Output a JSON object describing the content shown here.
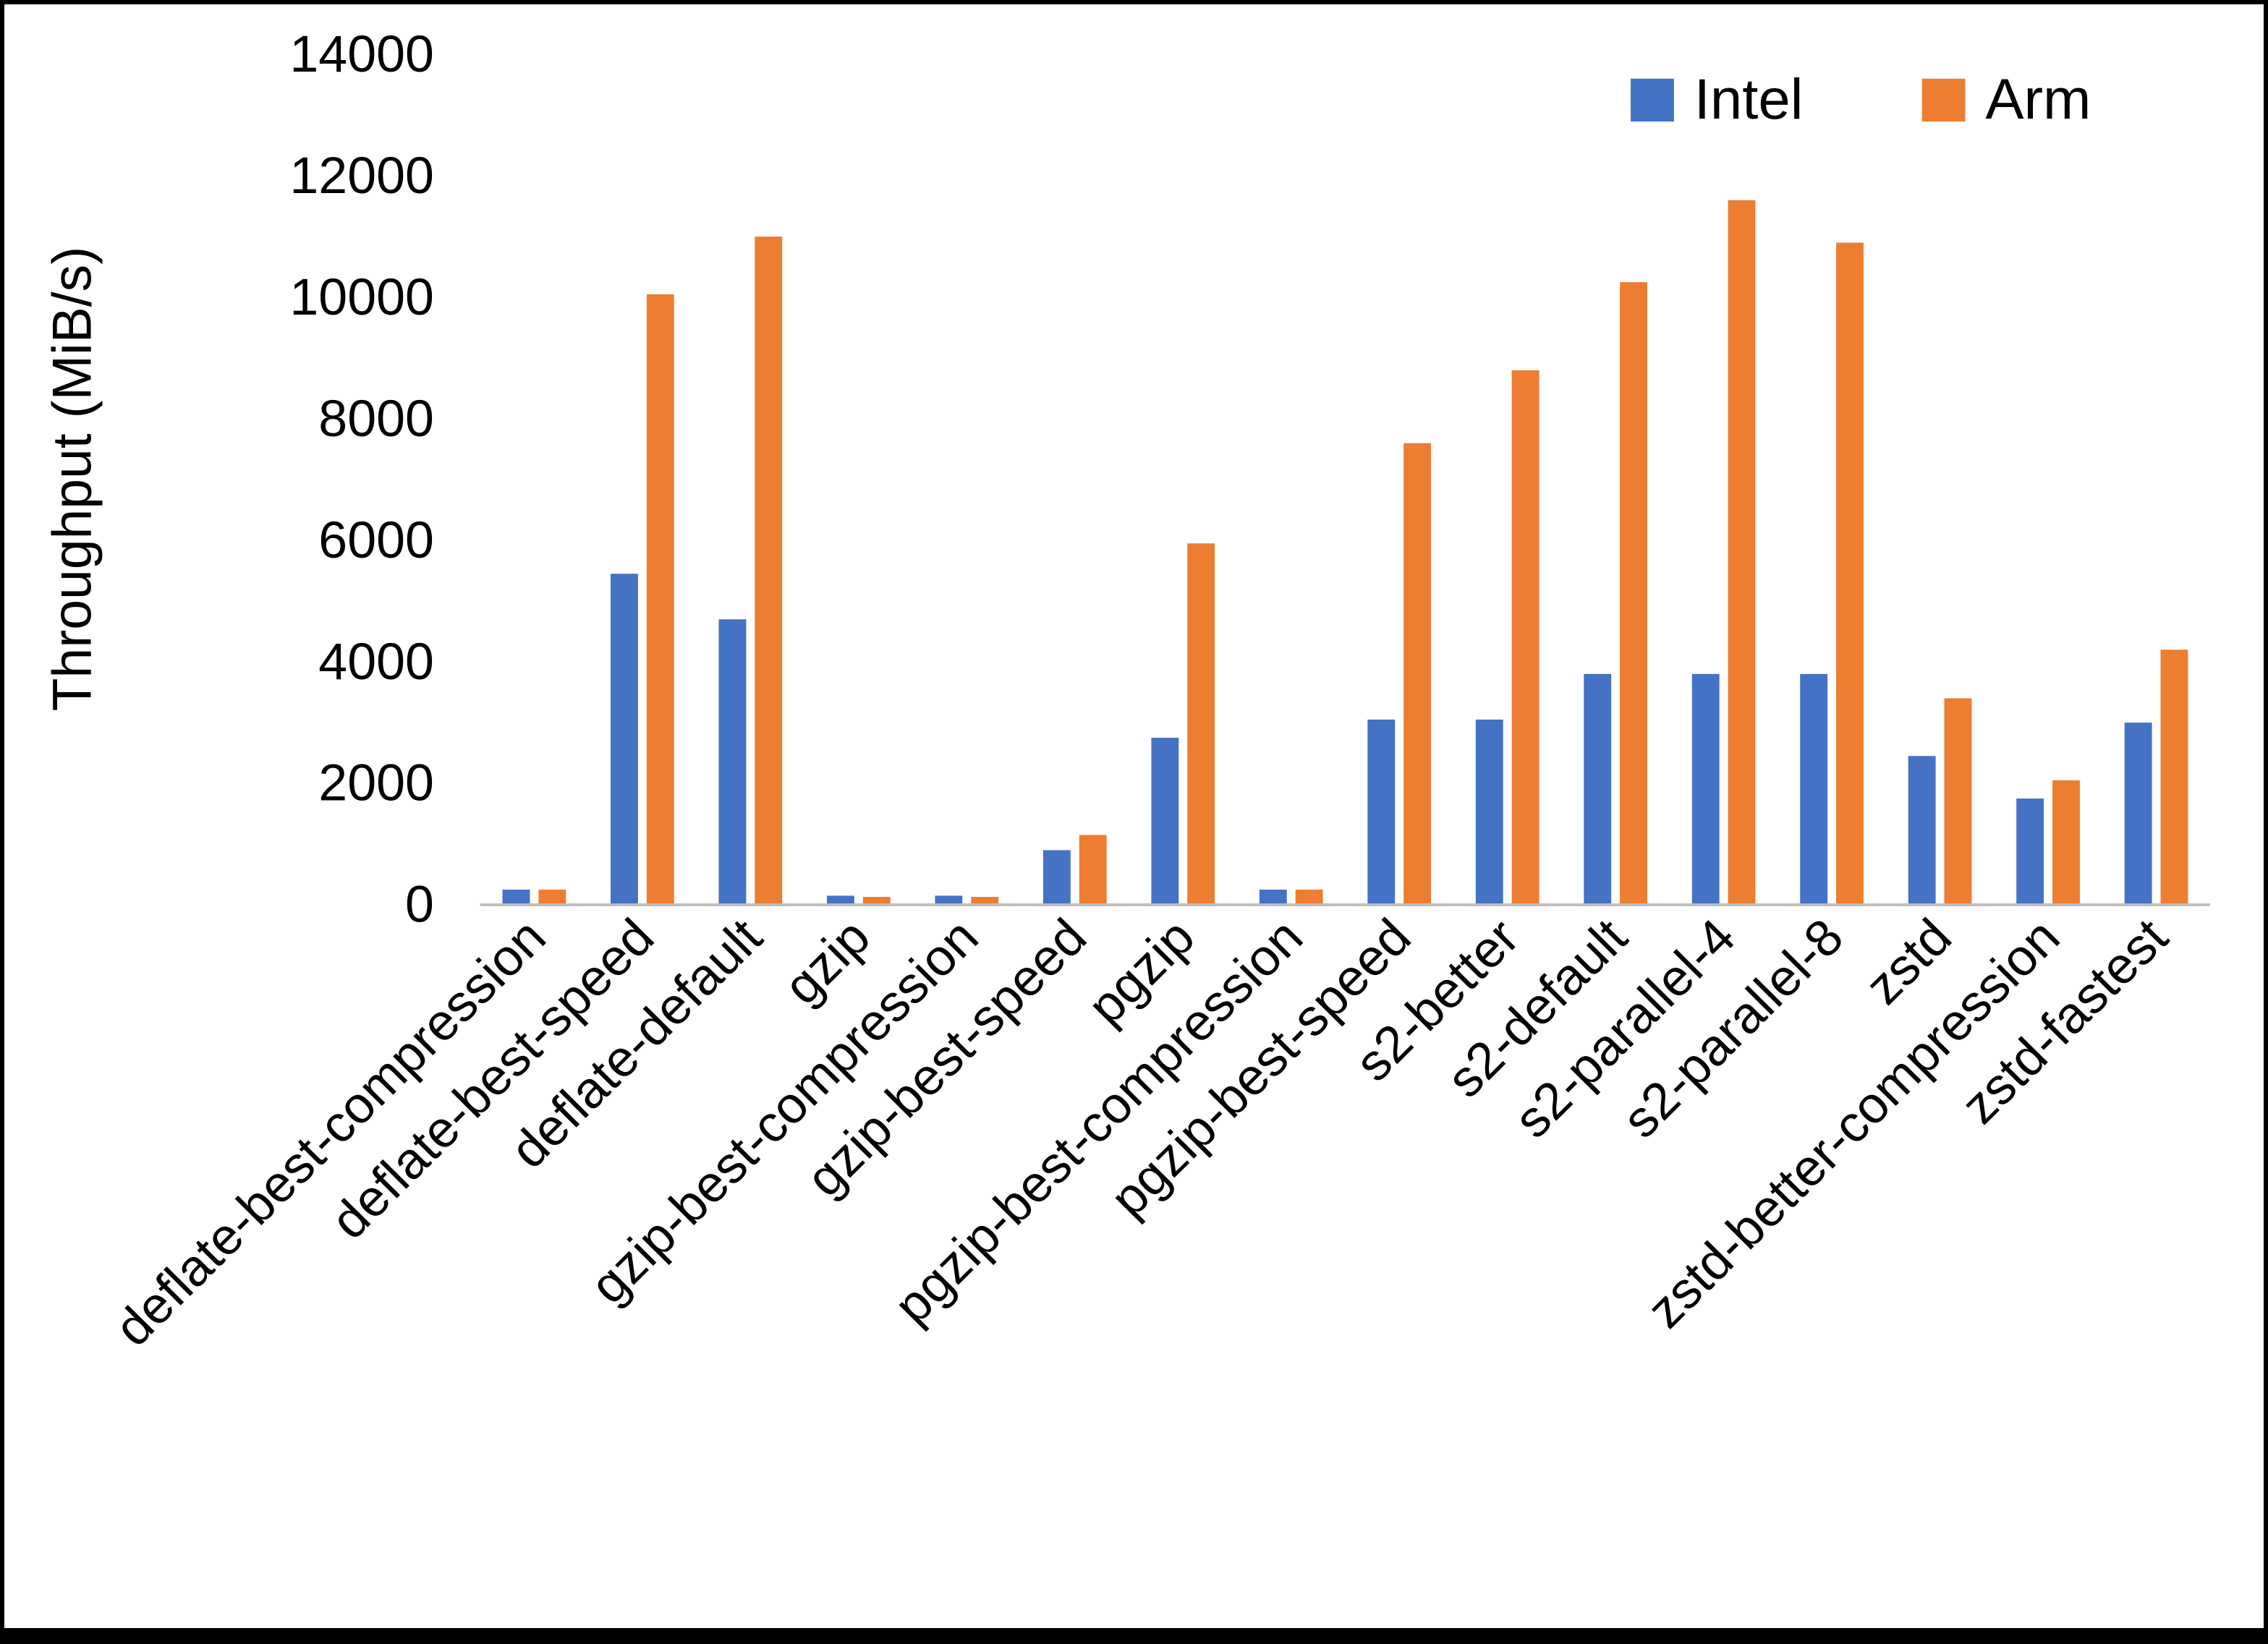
{
  "chart_data": {
    "type": "bar",
    "title": "",
    "xlabel": "",
    "ylabel": "Throughput (MiB/s)",
    "ylim": [
      0,
      14000
    ],
    "ytick_step": 2000,
    "grid": false,
    "legend_position": "top-right",
    "axis_line_color": "#bfbfbf",
    "categories": [
      "deflate-best-compression",
      "deflate-best-speed",
      "deflate-default",
      "gzip",
      "gzip-best-compression",
      "gzip-best-speed",
      "pgzip",
      "pgzip-best-compression",
      "pgzip-best-speed",
      "s2-better",
      "s2-default",
      "s2-parallel-4",
      "s2-parallel-8",
      "zstd",
      "zstd-better-compression",
      "zstd-fastest"
    ],
    "series": [
      {
        "name": "Intel",
        "color": "#4472C4",
        "values": [
          250,
          5450,
          4700,
          150,
          150,
          900,
          2750,
          250,
          3050,
          3050,
          3800,
          3800,
          3800,
          2450,
          1750,
          3000
        ]
      },
      {
        "name": "Arm",
        "color": "#ED7D31",
        "values": [
          250,
          10050,
          11000,
          130,
          130,
          1150,
          5950,
          250,
          7600,
          8800,
          10250,
          11600,
          10900,
          3400,
          2050,
          4200
        ]
      }
    ]
  }
}
